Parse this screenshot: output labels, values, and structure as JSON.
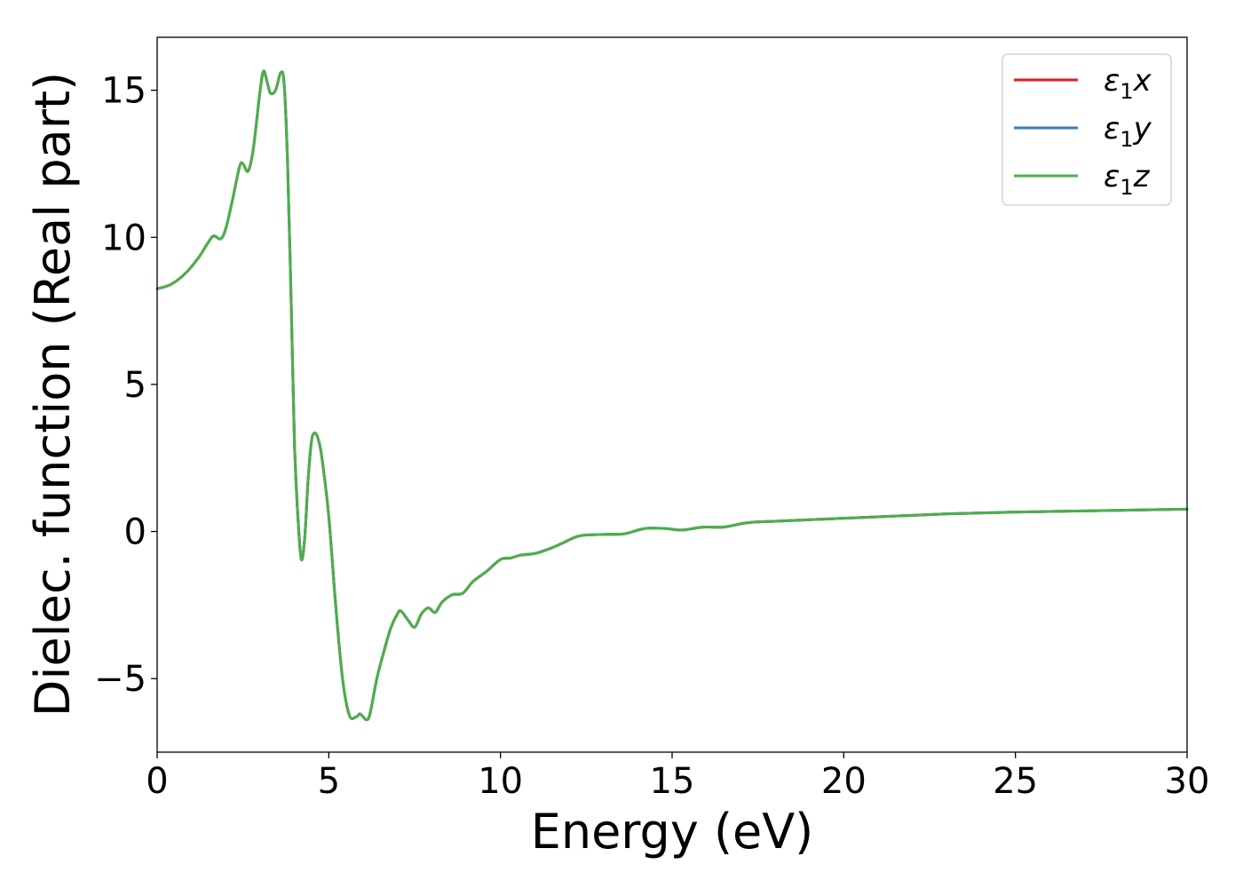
{
  "chart_data": {
    "type": "line",
    "title": "",
    "xlabel": "Energy (eV)",
    "ylabel": "Dielec. function (Real part)",
    "xlim": [
      0,
      30
    ],
    "ylim": [
      -7.5,
      16.8
    ],
    "xticks": [
      0,
      5,
      10,
      15,
      20,
      25,
      30
    ],
    "xtick_labels": [
      "0",
      "5",
      "10",
      "15",
      "20",
      "25",
      "30"
    ],
    "yticks": [
      -5,
      0,
      5,
      10,
      15
    ],
    "ytick_labels": [
      "−5",
      "0",
      "5",
      "10",
      "15"
    ],
    "grid": false,
    "legend_position": "top-right",
    "legend": [
      {
        "base": "ε",
        "sub": "1",
        "suffix": "x",
        "color": "#e41a1c"
      },
      {
        "base": "ε",
        "sub": "1",
        "suffix": "y",
        "color": "#377eb8"
      },
      {
        "base": "ε",
        "sub": "1",
        "suffix": "z",
        "color": "#4daf4a"
      }
    ],
    "x": [
      0.0,
      0.4,
      0.8,
      1.2,
      1.5,
      1.65,
      1.85,
      2.0,
      2.2,
      2.4,
      2.5,
      2.65,
      2.8,
      3.0,
      3.1,
      3.2,
      3.3,
      3.45,
      3.6,
      3.7,
      3.8,
      3.9,
      4.0,
      4.1,
      4.2,
      4.3,
      4.4,
      4.5,
      4.6,
      4.7,
      4.8,
      5.0,
      5.2,
      5.4,
      5.6,
      5.8,
      5.9,
      6.0,
      6.1,
      6.2,
      6.4,
      6.6,
      6.8,
      7.0,
      7.1,
      7.3,
      7.5,
      7.7,
      7.9,
      8.1,
      8.3,
      8.6,
      8.9,
      9.2,
      9.6,
      10.0,
      10.3,
      10.6,
      11.0,
      11.4,
      11.8,
      12.3,
      13.0,
      13.6,
      14.2,
      14.8,
      15.3,
      15.9,
      16.5,
      17.2,
      18.0,
      19.0,
      20.0,
      21.0,
      22.0,
      23.0,
      24.0,
      25.0,
      26.0,
      27.0,
      28.0,
      29.0,
      30.0
    ],
    "series": [
      {
        "name": "ε1x",
        "color": "#e41a1c",
        "values": [
          8.25,
          8.4,
          8.75,
          9.3,
          9.85,
          10.05,
          9.95,
          10.3,
          11.3,
          12.4,
          12.5,
          12.25,
          13.0,
          15.0,
          15.65,
          15.3,
          14.9,
          15.0,
          15.6,
          15.2,
          12.5,
          8.0,
          3.0,
          0.5,
          -0.95,
          -0.2,
          1.8,
          3.1,
          3.35,
          3.1,
          2.5,
          0.5,
          -2.5,
          -5.0,
          -6.25,
          -6.3,
          -6.2,
          -6.3,
          -6.4,
          -6.2,
          -5.0,
          -4.1,
          -3.3,
          -2.8,
          -2.7,
          -3.0,
          -3.25,
          -2.8,
          -2.6,
          -2.75,
          -2.4,
          -2.15,
          -2.1,
          -1.7,
          -1.35,
          -0.95,
          -0.9,
          -0.8,
          -0.75,
          -0.6,
          -0.4,
          -0.15,
          -0.1,
          -0.08,
          0.1,
          0.1,
          0.05,
          0.15,
          0.15,
          0.3,
          0.35,
          0.4,
          0.45,
          0.5,
          0.55,
          0.6,
          0.63,
          0.66,
          0.68,
          0.7,
          0.72,
          0.74,
          0.76
        ]
      },
      {
        "name": "ε1y",
        "color": "#377eb8",
        "values": [
          8.25,
          8.4,
          8.75,
          9.3,
          9.85,
          10.05,
          9.95,
          10.3,
          11.3,
          12.4,
          12.5,
          12.25,
          13.0,
          15.0,
          15.65,
          15.3,
          14.9,
          15.0,
          15.6,
          15.2,
          12.5,
          8.0,
          3.0,
          0.5,
          -0.95,
          -0.2,
          1.8,
          3.1,
          3.35,
          3.1,
          2.5,
          0.5,
          -2.5,
          -5.0,
          -6.25,
          -6.3,
          -6.2,
          -6.3,
          -6.4,
          -6.2,
          -5.0,
          -4.1,
          -3.3,
          -2.8,
          -2.7,
          -3.0,
          -3.25,
          -2.8,
          -2.6,
          -2.75,
          -2.4,
          -2.15,
          -2.1,
          -1.7,
          -1.35,
          -0.95,
          -0.9,
          -0.8,
          -0.75,
          -0.6,
          -0.4,
          -0.15,
          -0.1,
          -0.08,
          0.1,
          0.1,
          0.05,
          0.15,
          0.15,
          0.3,
          0.35,
          0.4,
          0.45,
          0.5,
          0.55,
          0.6,
          0.63,
          0.66,
          0.68,
          0.7,
          0.72,
          0.74,
          0.76
        ]
      },
      {
        "name": "ε1z",
        "color": "#4daf4a",
        "values": [
          8.25,
          8.4,
          8.75,
          9.3,
          9.85,
          10.05,
          9.95,
          10.3,
          11.3,
          12.4,
          12.5,
          12.25,
          13.0,
          15.0,
          15.65,
          15.3,
          14.9,
          15.0,
          15.6,
          15.2,
          12.5,
          8.0,
          3.0,
          0.5,
          -0.95,
          -0.2,
          1.8,
          3.1,
          3.35,
          3.1,
          2.5,
          0.5,
          -2.5,
          -5.0,
          -6.25,
          -6.3,
          -6.2,
          -6.3,
          -6.4,
          -6.2,
          -5.0,
          -4.1,
          -3.3,
          -2.8,
          -2.7,
          -3.0,
          -3.25,
          -2.8,
          -2.6,
          -2.75,
          -2.4,
          -2.15,
          -2.1,
          -1.7,
          -1.35,
          -0.95,
          -0.9,
          -0.8,
          -0.75,
          -0.6,
          -0.4,
          -0.15,
          -0.1,
          -0.08,
          0.1,
          0.1,
          0.05,
          0.15,
          0.15,
          0.3,
          0.35,
          0.4,
          0.45,
          0.5,
          0.55,
          0.6,
          0.63,
          0.66,
          0.68,
          0.7,
          0.72,
          0.74,
          0.76
        ]
      }
    ]
  }
}
